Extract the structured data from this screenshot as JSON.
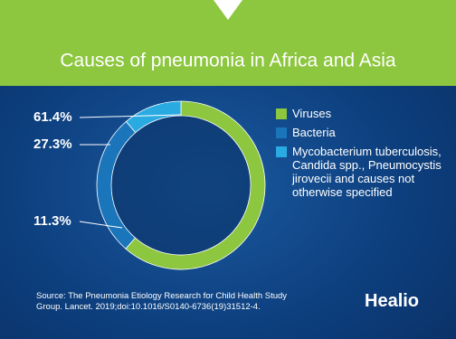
{
  "chart_data": {
    "type": "pie",
    "donut": true,
    "title": "Causes of pneumonia in Africa and Asia",
    "categories": [
      "Viruses",
      "Bacteria",
      "Mycobacterium tuberculosis, Candida spp., Pneumocystis jirovecii and causes not otherwise specified"
    ],
    "values": [
      61.4,
      27.3,
      11.3
    ],
    "value_labels": [
      "61.4%",
      "27.3%",
      "11.3%"
    ],
    "colors": [
      "#8dc63f",
      "#1b75bb",
      "#29abe2"
    ]
  },
  "source": "Source: The Pneumonia Etiology Research for Child Health Study Group. Lancet. 2019;doi:10.1016/S0140-6736(19)31512-4.",
  "logo": "Healio"
}
